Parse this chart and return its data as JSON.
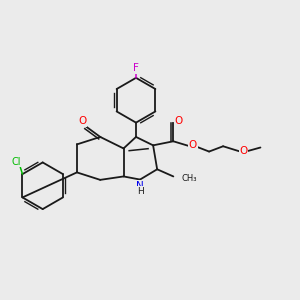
{
  "background_color": "#ebebeb",
  "bond_color": "#1a1a1a",
  "atom_colors": {
    "F": "#cc00cc",
    "Cl": "#00bb00",
    "O": "#ff0000",
    "N": "#0000ee",
    "C": "#1a1a1a"
  },
  "fig_width": 3.0,
  "fig_height": 3.0,
  "dpi": 100
}
